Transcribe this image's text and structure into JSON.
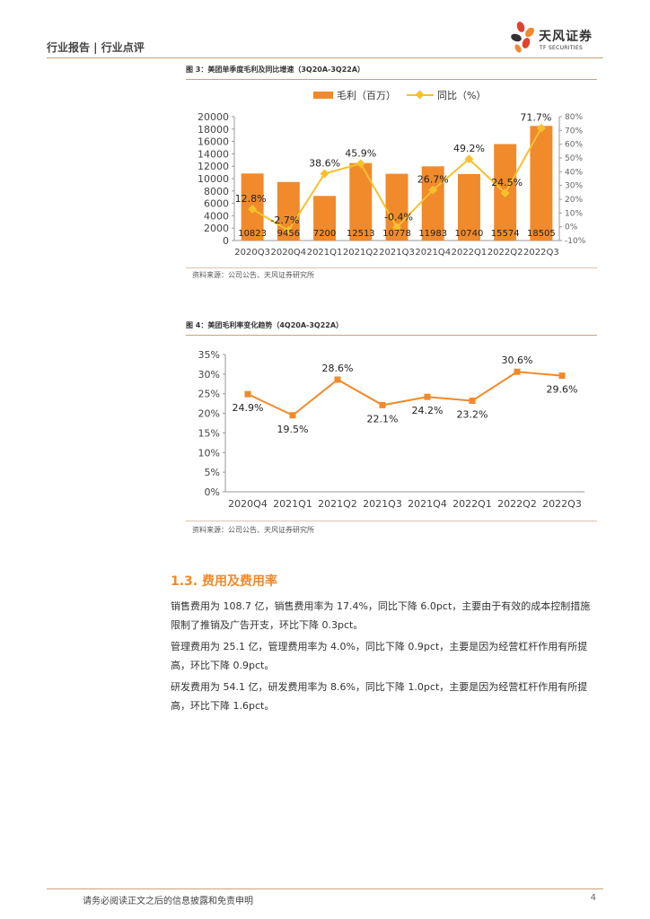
{
  "header": {
    "title": "行业报告 | 行业点评",
    "logo_name": "天风证券",
    "logo_sub": "TF SECURITIES"
  },
  "figure3": {
    "title": "图 3：美团单季度毛利及同比增速（3Q20A-3Q22A）",
    "source": "资料来源：公司公告、天风证券研究所",
    "legend_bar": "毛利（百万）",
    "legend_line": "同比（%）"
  },
  "figure4": {
    "title": "图 4：美团毛利率变化趋势（4Q20A-3Q22A）",
    "source": "资料来源：公司公告、天风证券研究所"
  },
  "chart_data": [
    {
      "type": "bar",
      "title": "图 3：美团单季度毛利及同比增速（3Q20A-3Q22A）",
      "categories": [
        "2020Q3",
        "2020Q4",
        "2021Q1",
        "2021Q2",
        "2021Q3",
        "2021Q4",
        "2022Q1",
        "2022Q2",
        "2022Q3"
      ],
      "series": [
        {
          "name": "毛利（百万）",
          "type": "bar",
          "axis": "left",
          "values": [
            10823,
            9456,
            7200,
            12513,
            10778,
            11983,
            10740,
            15574,
            18505
          ]
        },
        {
          "name": "同比（%）",
          "type": "line",
          "axis": "right",
          "values": [
            12.8,
            -2.7,
            38.6,
            45.9,
            -0.4,
            26.7,
            49.2,
            24.5,
            71.7
          ]
        }
      ],
      "y_left": {
        "min": 0,
        "max": 20000,
        "ticks": [
          0,
          2000,
          4000,
          6000,
          8000,
          10000,
          12000,
          14000,
          16000,
          18000,
          20000
        ]
      },
      "y_right": {
        "min": -10,
        "max": 80,
        "ticks": [
          "-10%",
          "0%",
          "10%",
          "20%",
          "30%",
          "40%",
          "50%",
          "60%",
          "70%",
          "80%"
        ]
      },
      "bar_labels": [
        "10823",
        "9456",
        "7200",
        "12513",
        "10778",
        "11983",
        "10740",
        "15574",
        "18505"
      ],
      "line_labels": [
        "12.8%",
        "-2.7%",
        "38.6%",
        "45.9%",
        "-0.4%",
        "26.7%",
        "49.2%",
        "24.5%",
        "71.7%"
      ],
      "colors": {
        "bar": "#f08a2b",
        "line": "#f7c12e"
      },
      "legend": "top"
    },
    {
      "type": "line",
      "title": "图 4：美团毛利率变化趋势（4Q20A-3Q22A）",
      "categories": [
        "2020Q4",
        "2021Q1",
        "2021Q2",
        "2021Q3",
        "2021Q4",
        "2022Q1",
        "2022Q2",
        "2022Q3"
      ],
      "series": [
        {
          "values": [
            24.9,
            19.5,
            28.6,
            22.1,
            24.2,
            23.2,
            30.6,
            29.6
          ]
        }
      ],
      "ylim": [
        0,
        35
      ],
      "y_ticks": [
        "0%",
        "5%",
        "10%",
        "15%",
        "20%",
        "25%",
        "30%",
        "35%"
      ],
      "labels": [
        "24.9%",
        "19.5%",
        "28.6%",
        "22.1%",
        "24.2%",
        "23.2%",
        "30.6%",
        "29.6%"
      ],
      "colors": {
        "line": "#f08a2b"
      }
    }
  ],
  "section": {
    "title": "1.3. 费用及费用率",
    "paragraphs": [
      "销售费用为 108.7 亿，销售费用率为 17.4%，同比下降 6.0pct，主要由于有效的成本控制措施限制了推销及广告开支，环比下降 0.3pct。",
      "管理费用为 25.1 亿，管理费用率为 4.0%，同比下降 0.9pct，主要是因为经营杠杆作用有所提高，环比下降 0.9pct。",
      "研发费用为 54.1 亿，研发费用率为 8.6%，同比下降 1.0pct，主要是因为经营杠杆作用有所提高，环比下降 1.6pct。"
    ]
  },
  "footer": {
    "disclaimer": "请务必阅读正文之后的信息披露和免责申明",
    "page": "4"
  }
}
